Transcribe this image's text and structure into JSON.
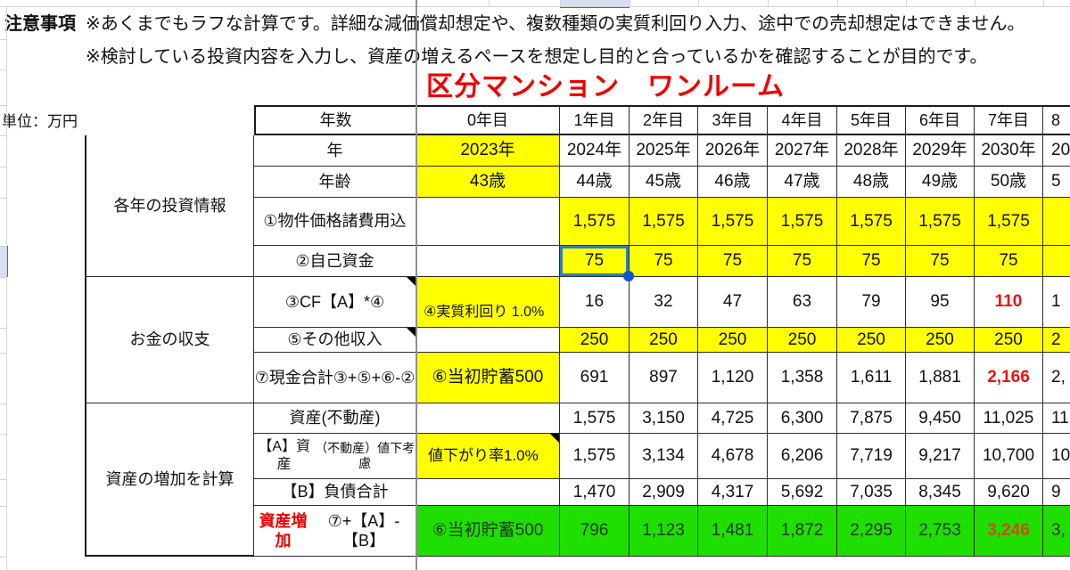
{
  "notes": {
    "label": "注意事項",
    "line1": "※あくまでもラフな計算です。詳細な減価償却想定や、複数種類の実質利回り入力、途中での売却想定はできません。",
    "line2": "※検討している投資内容を入力し、資産の増えるペースを想定し目的と合っているかを確認することが目的です。"
  },
  "title": "区分マンション　ワンルーム",
  "unit_label": "単位：万円",
  "colors": {
    "input_yellow": "#ffff00",
    "result_green": "#1fdf00",
    "alert_red": "#ee1111",
    "alert_red_on_green": "#d34a12",
    "title_red": "#ee0000",
    "selection_border": "#2d7fb8",
    "selection_handle": "#1453d6"
  },
  "table": {
    "corner_header": "年数",
    "year_headers": [
      "0年目",
      "1年目",
      "2年目",
      "3年目",
      "4年目",
      "5年目",
      "6年目",
      "7年目"
    ],
    "year_header_partial": "8",
    "groups": [
      {
        "label": "各年の投資情報",
        "from": 0,
        "to": 3
      },
      {
        "label": "お金の収支",
        "from": 4,
        "to": 6
      },
      {
        "label": "資産の増加を計算",
        "from": 7,
        "to": 10
      }
    ],
    "rows": [
      {
        "id": "year",
        "label": "年",
        "zero": {
          "text": "2023年",
          "bg": "yellow"
        },
        "bg": "white",
        "values": [
          "2024年",
          "2025年",
          "2026年",
          "2027年",
          "2028年",
          "2029年",
          "2030年"
        ],
        "partial": "20"
      },
      {
        "id": "age",
        "label": "年齢",
        "zero": {
          "text": "43歳",
          "bg": "yellow"
        },
        "bg": "white",
        "values": [
          "44歳",
          "45歳",
          "46歳",
          "47歳",
          "48歳",
          "49歳",
          "50歳"
        ],
        "partial": "5"
      },
      {
        "id": "price",
        "label": "①物件価格\n諸費用込",
        "zero": {
          "text": "",
          "bg": "white"
        },
        "bg": "yellow",
        "values": [
          "1,575",
          "1,575",
          "1,575",
          "1,575",
          "1,575",
          "1,575",
          "1,575"
        ],
        "partial": ""
      },
      {
        "id": "equity",
        "label": "②自己資金",
        "zero": {
          "text": "",
          "bg": "white"
        },
        "bg": "yellow",
        "values": [
          "75",
          "75",
          "75",
          "75",
          "75",
          "75",
          "75"
        ],
        "partial": "",
        "selected_col": 0
      },
      {
        "id": "cf",
        "label": "③CF\n【A】*④",
        "label_comment": true,
        "zero": {
          "text": "④実質利回り 1.0%",
          "bg": "yellow",
          "align": "bottom-left"
        },
        "bg": "white",
        "values": [
          "16",
          "32",
          "47",
          "63",
          "79",
          "95",
          "110"
        ],
        "red_last": true,
        "partial": "1"
      },
      {
        "id": "other",
        "label": "⑤その他収入",
        "label_comment": true,
        "zero": {
          "text": "",
          "bg": "white"
        },
        "bg": "yellow",
        "values": [
          "250",
          "250",
          "250",
          "250",
          "250",
          "250",
          "250"
        ],
        "partial": "2"
      },
      {
        "id": "cash",
        "label": "⑦現金合計\n③+⑤+⑥-②",
        "zero": {
          "text": "⑥当初貯蓄500",
          "bg": "yellow"
        },
        "bg": "white",
        "values": [
          "691",
          "897",
          "1,120",
          "1,358",
          "1,611",
          "1,881",
          "2,166"
        ],
        "red_last": true,
        "partial": "2,"
      },
      {
        "id": "asset",
        "label": "資産(不動産)",
        "zero": {
          "text": "",
          "bg": "white"
        },
        "bg": "white",
        "values": [
          "1,575",
          "3,150",
          "4,725",
          "6,300",
          "7,875",
          "9,450",
          "11,025"
        ],
        "partial": "11"
      },
      {
        "id": "assetA",
        "label": "【A】資産\n（不動産）値下考慮",
        "small": true,
        "zero": {
          "text": "値下がり率1.0%",
          "bg": "yellow",
          "align": "left",
          "comment": true
        },
        "bg": "white",
        "values": [
          "1,575",
          "3,134",
          "4,678",
          "6,206",
          "7,719",
          "9,217",
          "10,700"
        ],
        "partial": "10"
      },
      {
        "id": "debt",
        "label": "【B】負債合計",
        "zero": {
          "text": "",
          "bg": "white"
        },
        "bg": "white",
        "values": [
          "1,470",
          "2,909",
          "4,317",
          "5,692",
          "7,035",
          "8,345",
          "9,620"
        ],
        "partial": "9"
      },
      {
        "id": "gain",
        "label": "資産増加\n⑦+【A】-【B】",
        "label_red_first": true,
        "zero": {
          "text": "⑥当初貯蓄500",
          "bg": "green"
        },
        "bg": "green",
        "values": [
          "796",
          "1,123",
          "1,481",
          "1,872",
          "2,295",
          "2,753",
          "3,246"
        ],
        "red_last": true,
        "partial": "3,"
      }
    ]
  }
}
